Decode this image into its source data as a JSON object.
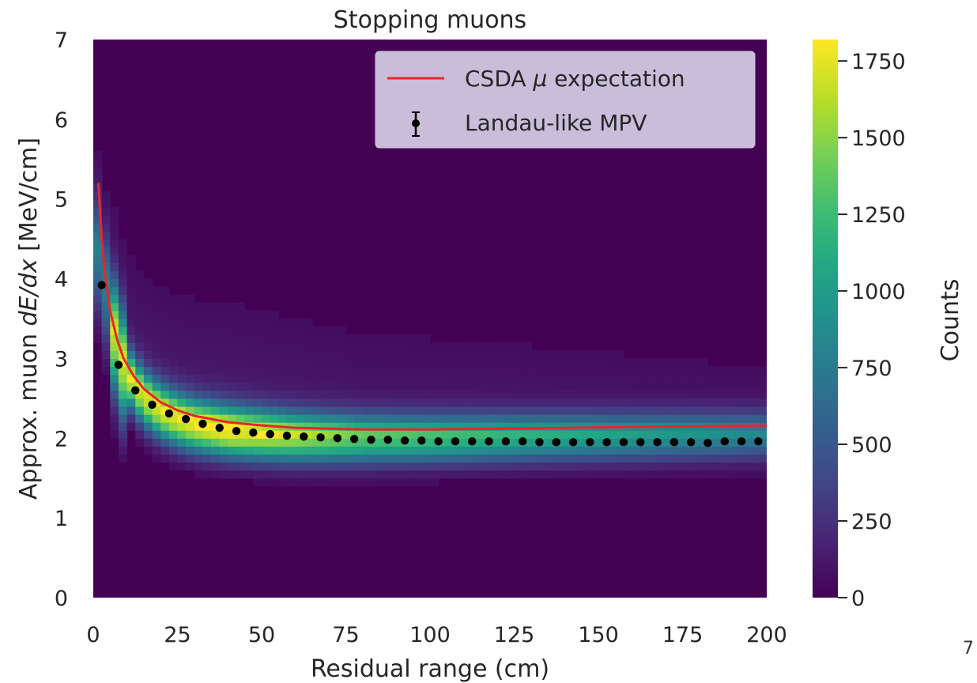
{
  "page_number": "7",
  "chart_data": {
    "type": "heatmap",
    "title": "Stopping muons",
    "xlabel": "Residual range (cm)",
    "ylabel_parts": [
      "Approx. muon ",
      "dE/dx",
      " [MeV/cm]"
    ],
    "xlim": [
      0,
      200
    ],
    "ylim": [
      0,
      7
    ],
    "x_ticks": [
      "0",
      "25",
      "50",
      "75",
      "100",
      "125",
      "150",
      "175",
      "200"
    ],
    "y_ticks": [
      "0",
      "1",
      "2",
      "3",
      "4",
      "5",
      "6",
      "7"
    ],
    "colorbar": {
      "label": "Counts",
      "range": [
        0,
        1820
      ],
      "colormap": "viridis",
      "ticks": [
        "0",
        "250",
        "500",
        "750",
        "1000",
        "1250",
        "1500",
        "1750"
      ]
    },
    "legend": {
      "placement": "top-right",
      "entries": [
        {
          "label_parts": [
            "CSDA ",
            "μ",
            " expectation"
          ],
          "marker": "line",
          "color": "#e8262a"
        },
        {
          "label": "Landau-like MPV",
          "marker": "errorbar-point",
          "color": "#000000"
        }
      ]
    },
    "series": [
      {
        "name": "CSDA μ expectation",
        "kind": "line",
        "color": "#e8262a",
        "x": [
          1.5,
          2.5,
          3.5,
          5,
          7,
          9,
          12,
          15,
          20,
          25,
          30,
          40,
          50,
          60,
          70,
          80,
          100,
          120,
          140,
          160,
          180,
          200
        ],
        "y": [
          5.2,
          4.5,
          4.05,
          3.6,
          3.25,
          3.0,
          2.78,
          2.62,
          2.45,
          2.35,
          2.28,
          2.2,
          2.16,
          2.13,
          2.12,
          2.11,
          2.11,
          2.12,
          2.13,
          2.14,
          2.15,
          2.16
        ]
      },
      {
        "name": "Landau-like MPV",
        "kind": "points",
        "color": "#000000",
        "x": [
          2.5,
          7.5,
          12.5,
          17.5,
          22.5,
          27.5,
          32.5,
          37.5,
          42.5,
          47.5,
          52.5,
          57.5,
          62.5,
          67.5,
          72.5,
          77.5,
          82.5,
          87.5,
          92.5,
          97.5,
          102.5,
          107.5,
          112.5,
          117.5,
          122.5,
          127.5,
          132.5,
          137.5,
          142.5,
          147.5,
          152.5,
          157.5,
          162.5,
          167.5,
          172.5,
          177.5,
          182.5,
          187.5,
          192.5,
          197.5
        ],
        "y": [
          3.92,
          2.92,
          2.6,
          2.42,
          2.31,
          2.24,
          2.18,
          2.13,
          2.09,
          2.07,
          2.05,
          2.03,
          2.02,
          2.01,
          2.0,
          1.99,
          1.98,
          1.98,
          1.97,
          1.97,
          1.96,
          1.96,
          1.96,
          1.96,
          1.96,
          1.96,
          1.95,
          1.95,
          1.95,
          1.95,
          1.95,
          1.95,
          1.95,
          1.95,
          1.95,
          1.95,
          1.94,
          1.96,
          1.96,
          1.96
        ]
      }
    ],
    "grid": false
  }
}
